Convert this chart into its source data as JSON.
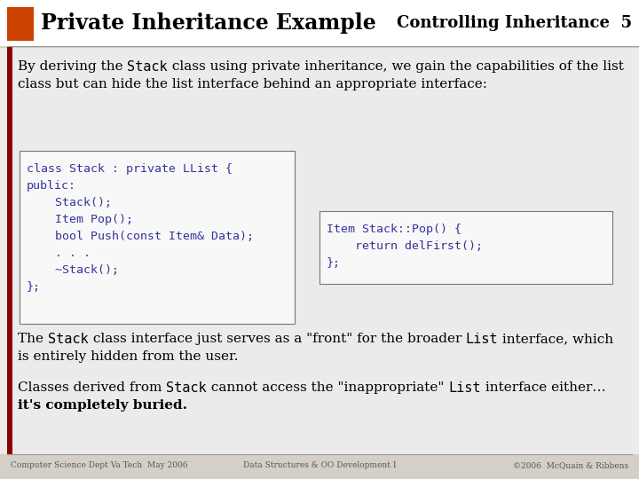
{
  "title_left": "Private Inheritance Example",
  "title_right": "Controlling Inheritance  5",
  "bg_color": "#d4d0c8",
  "header_bg": "#ffffff",
  "content_bg": "#f0ede8",
  "orange_color": "#cc4400",
  "dark_red_color": "#8b0000",
  "code_color": "#333399",
  "body_color": "#000000",
  "footer_color": "#555555",
  "code_box_bg": "#f8f8f8",
  "code_box_edge": "#888888",
  "footer_left": "Computer Science Dept Va Tech  May 2006",
  "footer_center": "Data Structures & OO Development I",
  "footer_right": "©2006  McQuain & Ribbens",
  "code_left_lines": [
    "class Stack : private LList {",
    "public:",
    "    Stack();",
    "    Item Pop();",
    "    bool Push(const Item& Data);",
    "    . . .",
    "    ~Stack();",
    "};"
  ],
  "code_right_lines": [
    "Item Stack::Pop() {",
    "    return delFirst();",
    "};"
  ]
}
